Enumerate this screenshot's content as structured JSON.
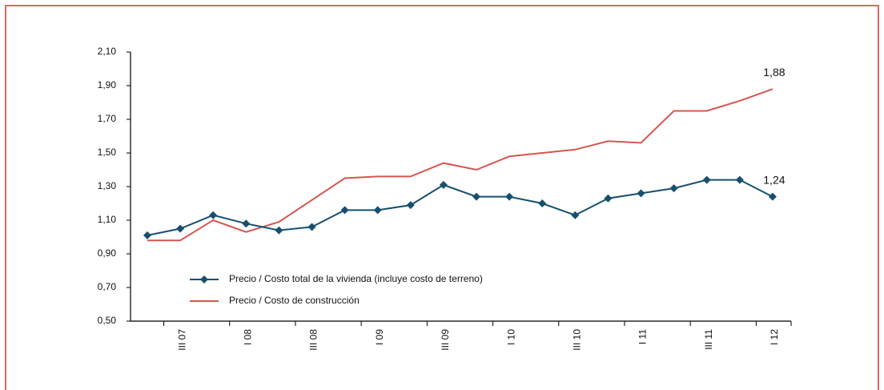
{
  "chart_data": {
    "type": "line",
    "categories": [
      null,
      "III 07",
      null,
      "I 08",
      null,
      "III 08",
      null,
      "I 09",
      null,
      "III 09",
      null,
      "I 10",
      null,
      "III 10",
      null,
      "I 11",
      null,
      "III 11",
      null,
      "I 12"
    ],
    "ylim": [
      0.5,
      2.1
    ],
    "yticks": [
      {
        "value": 0.5,
        "label": "0,50"
      },
      {
        "value": 0.7,
        "label": "0,70"
      },
      {
        "value": 0.9,
        "label": "0,90"
      },
      {
        "value": 1.1,
        "label": "1,10"
      },
      {
        "value": 1.3,
        "label": "1,30"
      },
      {
        "value": 1.5,
        "label": "1,50"
      },
      {
        "value": 1.7,
        "label": "1,70"
      },
      {
        "value": 1.9,
        "label": "1,90"
      },
      {
        "value": 2.1,
        "label": "2,10"
      }
    ],
    "series": [
      {
        "name": "Precio / Costo total de la vivienda (incluye costo de terreno)",
        "color": "#17506f",
        "marker": "diamond",
        "values": [
          1.01,
          1.05,
          1.13,
          1.08,
          1.04,
          1.06,
          1.16,
          1.16,
          1.19,
          1.31,
          1.24,
          1.24,
          1.2,
          1.13,
          1.23,
          1.26,
          1.29,
          1.34,
          1.34,
          1.24
        ],
        "value_labels": [
          null,
          null,
          null,
          null,
          null,
          null,
          null,
          null,
          null,
          null,
          null,
          null,
          null,
          null,
          null,
          null,
          null,
          null,
          null,
          "1,24"
        ]
      },
      {
        "name": "Precio / Costo de construcción",
        "color": "#d4574f",
        "marker": null,
        "values": [
          0.98,
          0.98,
          1.1,
          1.03,
          1.09,
          1.22,
          1.35,
          1.36,
          1.36,
          1.44,
          1.4,
          1.48,
          1.5,
          1.52,
          1.57,
          1.56,
          1.75,
          1.75,
          1.81,
          1.88
        ],
        "value_labels": [
          null,
          null,
          null,
          null,
          null,
          null,
          null,
          null,
          null,
          null,
          null,
          null,
          null,
          null,
          null,
          null,
          null,
          null,
          null,
          "1,88"
        ]
      }
    ],
    "frame_color": "#e0665e"
  }
}
